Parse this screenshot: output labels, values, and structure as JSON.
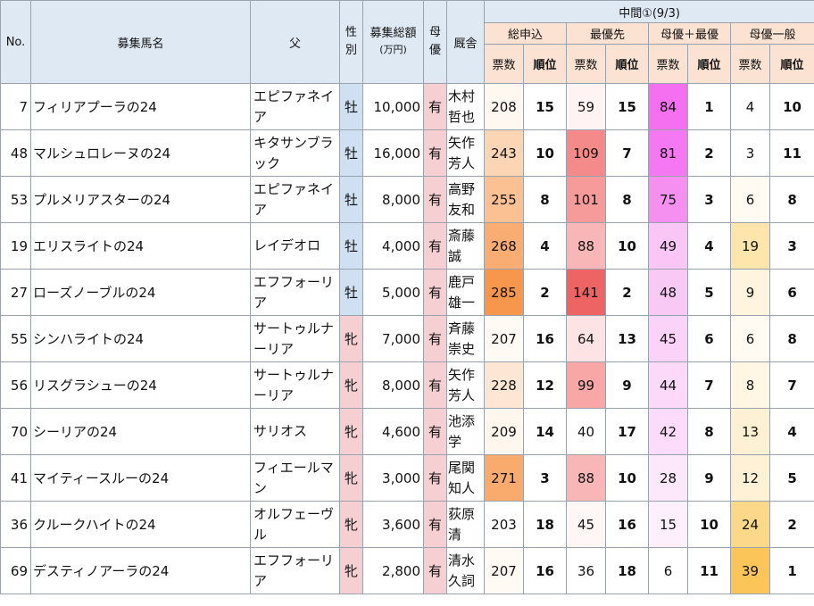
{
  "headers": {
    "no": "No.",
    "name": "募集馬名",
    "sire": "父",
    "sex": "性別",
    "amount": "募集総額",
    "amount_unit": "(万円)",
    "mare": "母優",
    "stable": "厩舎",
    "interim": "中間①(9/3)",
    "groups": [
      "総申込",
      "最優先",
      "母優＋最優",
      "母優一般"
    ],
    "votes": "票数",
    "rank": "順位"
  },
  "rows": [
    {
      "no": "7",
      "name": "フィリアプーラの24",
      "sire": "エピファネイア",
      "sex": "牡",
      "sex_class": "m",
      "amount": "10,000",
      "mare": "有",
      "trainer": "木村哲也",
      "total": "208",
      "total_rank": "15",
      "top": "59",
      "top_rank": "15",
      "mt": "84",
      "mt_rank": "1",
      "mg": "4",
      "mg_rank": "10",
      "bg": [
        "#fff8f1",
        "#fff3f3",
        "#f470f0",
        "#ffffff"
      ]
    },
    {
      "no": "48",
      "name": "マルシュロレーヌの24",
      "sire": "キタサンブラック",
      "sex": "牡",
      "sex_class": "m",
      "amount": "16,000",
      "mare": "有",
      "trainer": "矢作芳人",
      "total": "243",
      "total_rank": "10",
      "top": "109",
      "top_rank": "7",
      "mt": "81",
      "mt_rank": "2",
      "mg": "3",
      "mg_rank": "11",
      "bg": [
        "#fcd5b5",
        "#f58a8a",
        "#f478f2",
        "#ffffff"
      ]
    },
    {
      "no": "53",
      "name": "プルメリアスターの24",
      "sire": "エピファネイア",
      "sex": "牡",
      "sex_class": "m",
      "amount": "8,000",
      "mare": "有",
      "trainer": "高野友和",
      "total": "255",
      "total_rank": "8",
      "top": "101",
      "top_rank": "8",
      "mt": "75",
      "mt_rank": "3",
      "mg": "6",
      "mg_rank": "8",
      "bg": [
        "#fbc193",
        "#f79a9a",
        "#f590f1",
        "#fffbf2"
      ]
    },
    {
      "no": "19",
      "name": "エリスライトの24",
      "sire": "レイデオロ",
      "sex": "牡",
      "sex_class": "m",
      "amount": "4,000",
      "mare": "有",
      "trainer": "斎藤誠",
      "total": "268",
      "total_rank": "4",
      "top": "88",
      "top_rank": "10",
      "mt": "49",
      "mt_rank": "4",
      "mg": "19",
      "mg_rank": "3",
      "bg": [
        "#f9ad72",
        "#f9b6b6",
        "#f9c6f5",
        "#fde5ac"
      ]
    },
    {
      "no": "27",
      "name": "ローズノーブルの24",
      "sire": "エフフォーリア",
      "sex": "牡",
      "sex_class": "m",
      "amount": "5,000",
      "mare": "有",
      "trainer": "鹿戸雄一",
      "total": "285",
      "total_rank": "2",
      "top": "141",
      "top_rank": "2",
      "mt": "48",
      "mt_rank": "5",
      "mg": "9",
      "mg_rank": "6",
      "bg": [
        "#f7974d",
        "#ee6464",
        "#f9c9f6",
        "#fff4de"
      ]
    },
    {
      "no": "55",
      "name": "シンハライトの24",
      "sire": "サートゥルナーリア",
      "sex": "牝",
      "sex_class": "f",
      "amount": "7,000",
      "mare": "有",
      "trainer": "斉藤崇史",
      "total": "207",
      "total_rank": "16",
      "top": "64",
      "top_rank": "13",
      "mt": "45",
      "mt_rank": "6",
      "mg": "6",
      "mg_rank": "8",
      "bg": [
        "#fffaf4",
        "#fde3e3",
        "#fbd3f8",
        "#fffbf2"
      ]
    },
    {
      "no": "56",
      "name": "リスグラシューの24",
      "sire": "サートゥルナーリア",
      "sex": "牝",
      "sex_class": "f",
      "amount": "8,000",
      "mare": "有",
      "trainer": "矢作芳人",
      "total": "228",
      "total_rank": "12",
      "top": "99",
      "top_rank": "9",
      "mt": "44",
      "mt_rank": "7",
      "mg": "8",
      "mg_rank": "7",
      "bg": [
        "#fde6d4",
        "#f9a6a6",
        "#fcd9f9",
        "#fff6e4"
      ]
    },
    {
      "no": "70",
      "name": "シーリアの24",
      "sire": "サリオス",
      "sex": "牝",
      "sex_class": "f",
      "amount": "4,600",
      "mare": "有",
      "trainer": "池添学",
      "total": "209",
      "total_rank": "14",
      "top": "40",
      "top_rank": "17",
      "mt": "42",
      "mt_rank": "8",
      "mg": "13",
      "mg_rank": "4",
      "bg": [
        "#fff6ee",
        "#ffffff",
        "#fcdcfa",
        "#fef0d2"
      ]
    },
    {
      "no": "41",
      "name": "マイティースルーの24",
      "sire": "フィエールマン",
      "sex": "牝",
      "sex_class": "f",
      "amount": "3,000",
      "mare": "有",
      "trainer": "尾関知人",
      "total": "271",
      "total_rank": "3",
      "top": "88",
      "top_rank": "10",
      "mt": "28",
      "mt_rank": "9",
      "mg": "12",
      "mg_rank": "5",
      "bg": [
        "#f9ab6e",
        "#f9b6b6",
        "#fde8fb",
        "#fef1d6"
      ]
    },
    {
      "no": "36",
      "name": "クルークハイトの24",
      "sire": "オルフェーヴル",
      "sex": "牝",
      "sex_class": "f",
      "amount": "3,600",
      "mare": "有",
      "trainer": "荻原清",
      "total": "203",
      "total_rank": "18",
      "top": "45",
      "top_rank": "16",
      "mt": "15",
      "mt_rank": "10",
      "mg": "24",
      "mg_rank": "2",
      "bg": [
        "#ffffff",
        "#fff6f6",
        "#fdf0fc",
        "#fcd98a"
      ]
    },
    {
      "no": "69",
      "name": "デスティノアーラの24",
      "sire": "エフフォーリア",
      "sex": "牝",
      "sex_class": "f",
      "amount": "2,800",
      "mare": "有",
      "trainer": "清水久詞",
      "total": "207",
      "total_rank": "16",
      "top": "36",
      "top_rank": "18",
      "mt": "6",
      "mt_rank": "11",
      "mg": "39",
      "mg_rank": "1",
      "bg": [
        "#fffaf4",
        "#ffffff",
        "#ffffff",
        "#fbc55a"
      ]
    }
  ]
}
